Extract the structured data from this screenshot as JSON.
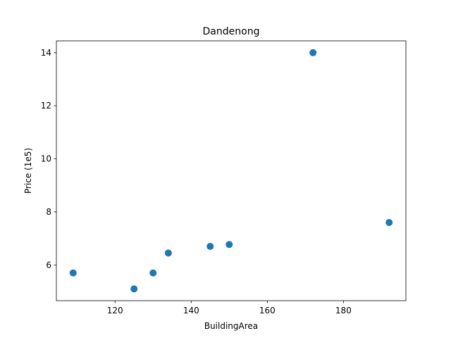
{
  "chart_data": {
    "type": "scatter",
    "title": "Dandenong",
    "xlabel": "BuildingArea",
    "ylabel": "Price (1e5)",
    "xlim": [
      104.6,
      196.4
    ],
    "ylim": [
      4.654,
      14.446
    ],
    "xticks": [
      120,
      140,
      160,
      180
    ],
    "yticks": [
      6,
      8,
      10,
      12,
      14
    ],
    "xtick_labels": [
      "120",
      "140",
      "160",
      "180"
    ],
    "ytick_labels": [
      "6",
      "8",
      "10",
      "12",
      "14"
    ],
    "grid": false,
    "marker_color": "#1f77b4",
    "points": [
      {
        "x": 109,
        "y": 5.7
      },
      {
        "x": 125,
        "y": 5.1
      },
      {
        "x": 130,
        "y": 5.7
      },
      {
        "x": 134,
        "y": 6.45
      },
      {
        "x": 145,
        "y": 6.7
      },
      {
        "x": 150,
        "y": 6.77
      },
      {
        "x": 172,
        "y": 14.0
      },
      {
        "x": 192,
        "y": 7.6
      }
    ]
  }
}
